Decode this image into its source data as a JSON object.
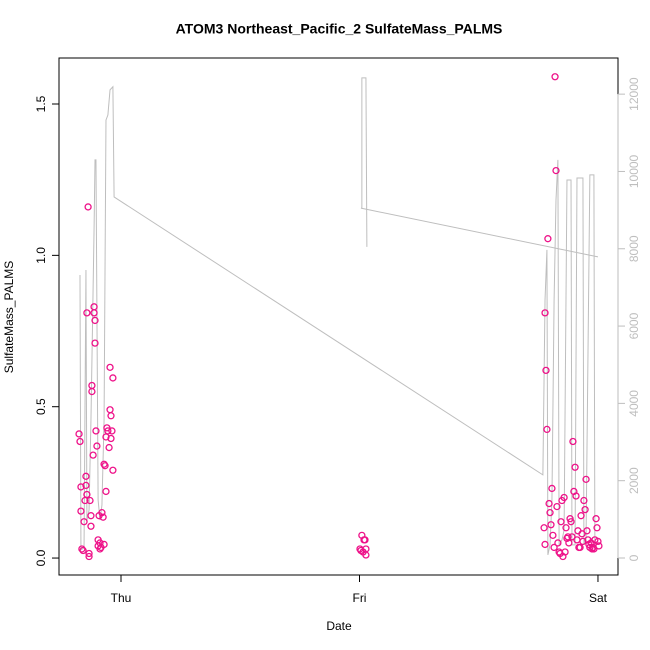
{
  "chart_data": {
    "type": "scatter",
    "title": "ATOM3 Northeast_Pacific_2 SulfateMass_PALMS",
    "xlabel": "Date",
    "ylabel": "SulfateMass_PALMS",
    "color": "#ee1289",
    "xlim": [
      -0.26,
      2.084
    ],
    "ylim": [
      -0.056,
      1.652
    ],
    "xticks": [
      {
        "value": 0,
        "label": "Thu"
      },
      {
        "value": 1,
        "label": "Fri"
      },
      {
        "value": 2,
        "label": "Sat"
      }
    ],
    "yticks": [
      {
        "value": 0,
        "label": "0.0"
      },
      0.5,
      {
        "value": 1,
        "label": "1.0"
      },
      1.5
    ],
    "x": [
      -0.176,
      -0.172,
      -0.168,
      -0.168,
      -0.164,
      -0.159,
      -0.155,
      -0.151,
      -0.147,
      -0.147,
      -0.143,
      -0.143,
      -0.138,
      -0.134,
      -0.134,
      -0.13,
      -0.126,
      -0.126,
      -0.122,
      -0.122,
      -0.117,
      -0.113,
      -0.113,
      -0.109,
      -0.109,
      -0.105,
      -0.101,
      -0.096,
      -0.096,
      -0.092,
      -0.088,
      -0.084,
      -0.08,
      -0.075,
      -0.071,
      -0.067,
      -0.063,
      -0.059,
      -0.055,
      -0.05,
      -0.046,
      -0.046,
      -0.042,
      -0.042,
      -0.034,
      -0.034,
      -0.038,
      -0.063,
      -0.071,
      -0.088,
      1.006,
      1.01,
      1.015,
      1.019,
      1.023,
      1.027,
      1.027,
      1.002,
      1.774,
      1.778,
      1.778,
      1.782,
      1.786,
      1.79,
      1.795,
      1.799,
      1.803,
      1.807,
      1.811,
      1.816,
      1.82,
      1.824,
      1.828,
      1.832,
      1.837,
      1.841,
      1.845,
      1.849,
      1.853,
      1.858,
      1.862,
      1.866,
      1.87,
      1.874,
      1.878,
      1.883,
      1.887,
      1.891,
      1.895,
      1.899,
      1.904,
      1.908,
      1.912,
      1.916,
      1.92,
      1.925,
      1.929,
      1.933,
      1.937,
      1.941,
      1.946,
      1.95,
      1.954,
      1.958,
      1.962,
      1.966,
      1.971,
      1.975,
      1.979,
      1.983,
      1.987,
      1.992,
      1.996,
      2.0,
      2.004
    ],
    "values": [
      0.41,
      0.385,
      0.235,
      0.155,
      0.03,
      0.025,
      0.12,
      0.19,
      0.27,
      0.24,
      0.81,
      0.21,
      1.16,
      0.005,
      0.015,
      0.19,
      0.105,
      0.14,
      0.57,
      0.55,
      0.34,
      0.83,
      0.81,
      0.71,
      0.785,
      0.42,
      0.37,
      0.06,
      0.04,
      0.14,
      0.05,
      0.035,
      0.15,
      0.135,
      0.31,
      0.305,
      0.4,
      0.43,
      0.42,
      0.365,
      0.63,
      0.49,
      0.47,
      0.395,
      0.595,
      0.29,
      0.42,
      0.22,
      0.045,
      0.03,
      0.025,
      0.075,
      0.02,
      0.06,
      0.06,
      0.03,
      0.01,
      0.03,
      0.1,
      0.045,
      0.81,
      0.62,
      0.425,
      1.055,
      0.18,
      0.15,
      0.11,
      0.23,
      0.075,
      0.035,
      1.59,
      1.28,
      0.17,
      0.05,
      0.02,
      0.015,
      0.12,
      0.19,
      0.005,
      0.2,
      0.02,
      0.1,
      0.065,
      0.07,
      0.05,
      0.13,
      0.12,
      0.07,
      0.385,
      0.22,
      0.3,
      0.205,
      0.06,
      0.09,
      0.035,
      0.035,
      0.14,
      0.08,
      0.055,
      0.19,
      0.16,
      0.26,
      0.09,
      0.06,
      0.045,
      0.035,
      0.05,
      0.03,
      0.035,
      0.03,
      0.06,
      0.13,
      0.1,
      0.055,
      0.04
    ],
    "overlay": {
      "type": "line",
      "axis": "y2",
      "color": "#bebebe",
      "y2lim": [
        -440,
        12935
      ],
      "y2ticks": [
        0,
        2000,
        4000,
        6000,
        8000,
        10000,
        12000
      ],
      "x": [
        -0.172,
        -0.168,
        -0.155,
        -0.147,
        -0.143,
        -0.134,
        -0.126,
        -0.113,
        -0.109,
        -0.105,
        -0.096,
        -0.088,
        -0.08,
        -0.071,
        -0.063,
        -0.055,
        -0.046,
        -0.034,
        -0.029,
        1.769,
        1.778,
        1.786,
        1.79,
        1.799,
        1.807,
        1.816,
        1.824,
        1.832,
        1.837,
        1.849,
        1.858,
        1.87,
        1.887,
        1.891,
        1.904,
        1.912,
        1.937,
        1.941,
        1.95,
        1.966,
        1.983,
        1.987,
        null,
        1.01,
        1.01,
        1.027,
        1.031,
        null,
        1.006,
        2.0
      ],
      "values": [
        7320,
        210,
        260,
        7450,
        980,
        1240,
        3570,
        8490,
        10300,
        10300,
        1500,
        980,
        1370,
        3570,
        11330,
        11460,
        12110,
        12190,
        9340,
        2150,
        6670,
        7970,
        80,
        340,
        1500,
        6670,
        9260,
        10300,
        340,
        470,
        720,
        9780,
        9780,
        340,
        340,
        9830,
        9830,
        340,
        470,
        9910,
        9910,
        340,
        null,
        9050,
        12420,
        12420,
        8050,
        null,
        9050,
        7790
      ]
    }
  }
}
